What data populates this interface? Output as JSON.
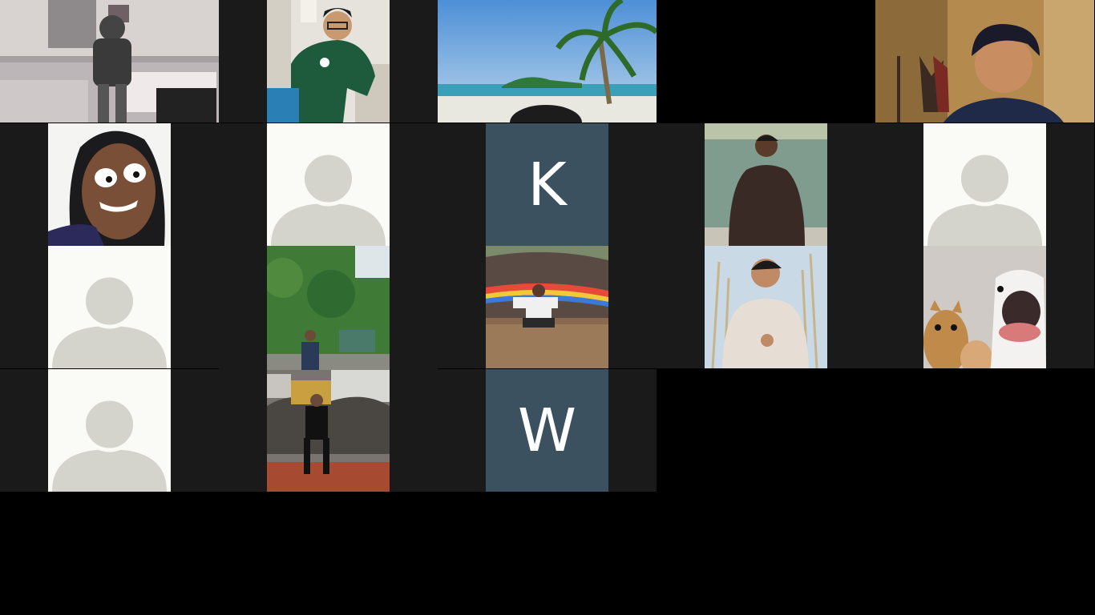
{
  "meeting": {
    "view": "gallery",
    "participant_count": 17
  },
  "participants": [
    {
      "type": "video",
      "scene": "room-selfie"
    },
    {
      "type": "video",
      "scene": "man-green-jacket"
    },
    {
      "type": "video",
      "scene": "beach-background"
    },
    {
      "type": "video",
      "scene": "man-warm-room"
    },
    {
      "type": "video",
      "scene": "drawn-face"
    },
    {
      "type": "avatar"
    },
    {
      "type": "initial",
      "initial": "K"
    },
    {
      "type": "video",
      "scene": "lake-photo"
    },
    {
      "type": "avatar"
    },
    {
      "type": "avatar"
    },
    {
      "type": "video",
      "scene": "forest-collage"
    },
    {
      "type": "video",
      "scene": "kampung-sign"
    },
    {
      "type": "video",
      "scene": "reeds-portrait"
    },
    {
      "type": "video",
      "scene": "cat-dog"
    },
    {
      "type": "avatar"
    },
    {
      "type": "initial",
      "initial": "W"
    }
  ],
  "colors": {
    "tile_bg": "#1a1a1a",
    "initial_bg": "#3c5160",
    "avatar_bg": "#fafaf7",
    "avatar_fg": "#d4d4cc"
  }
}
